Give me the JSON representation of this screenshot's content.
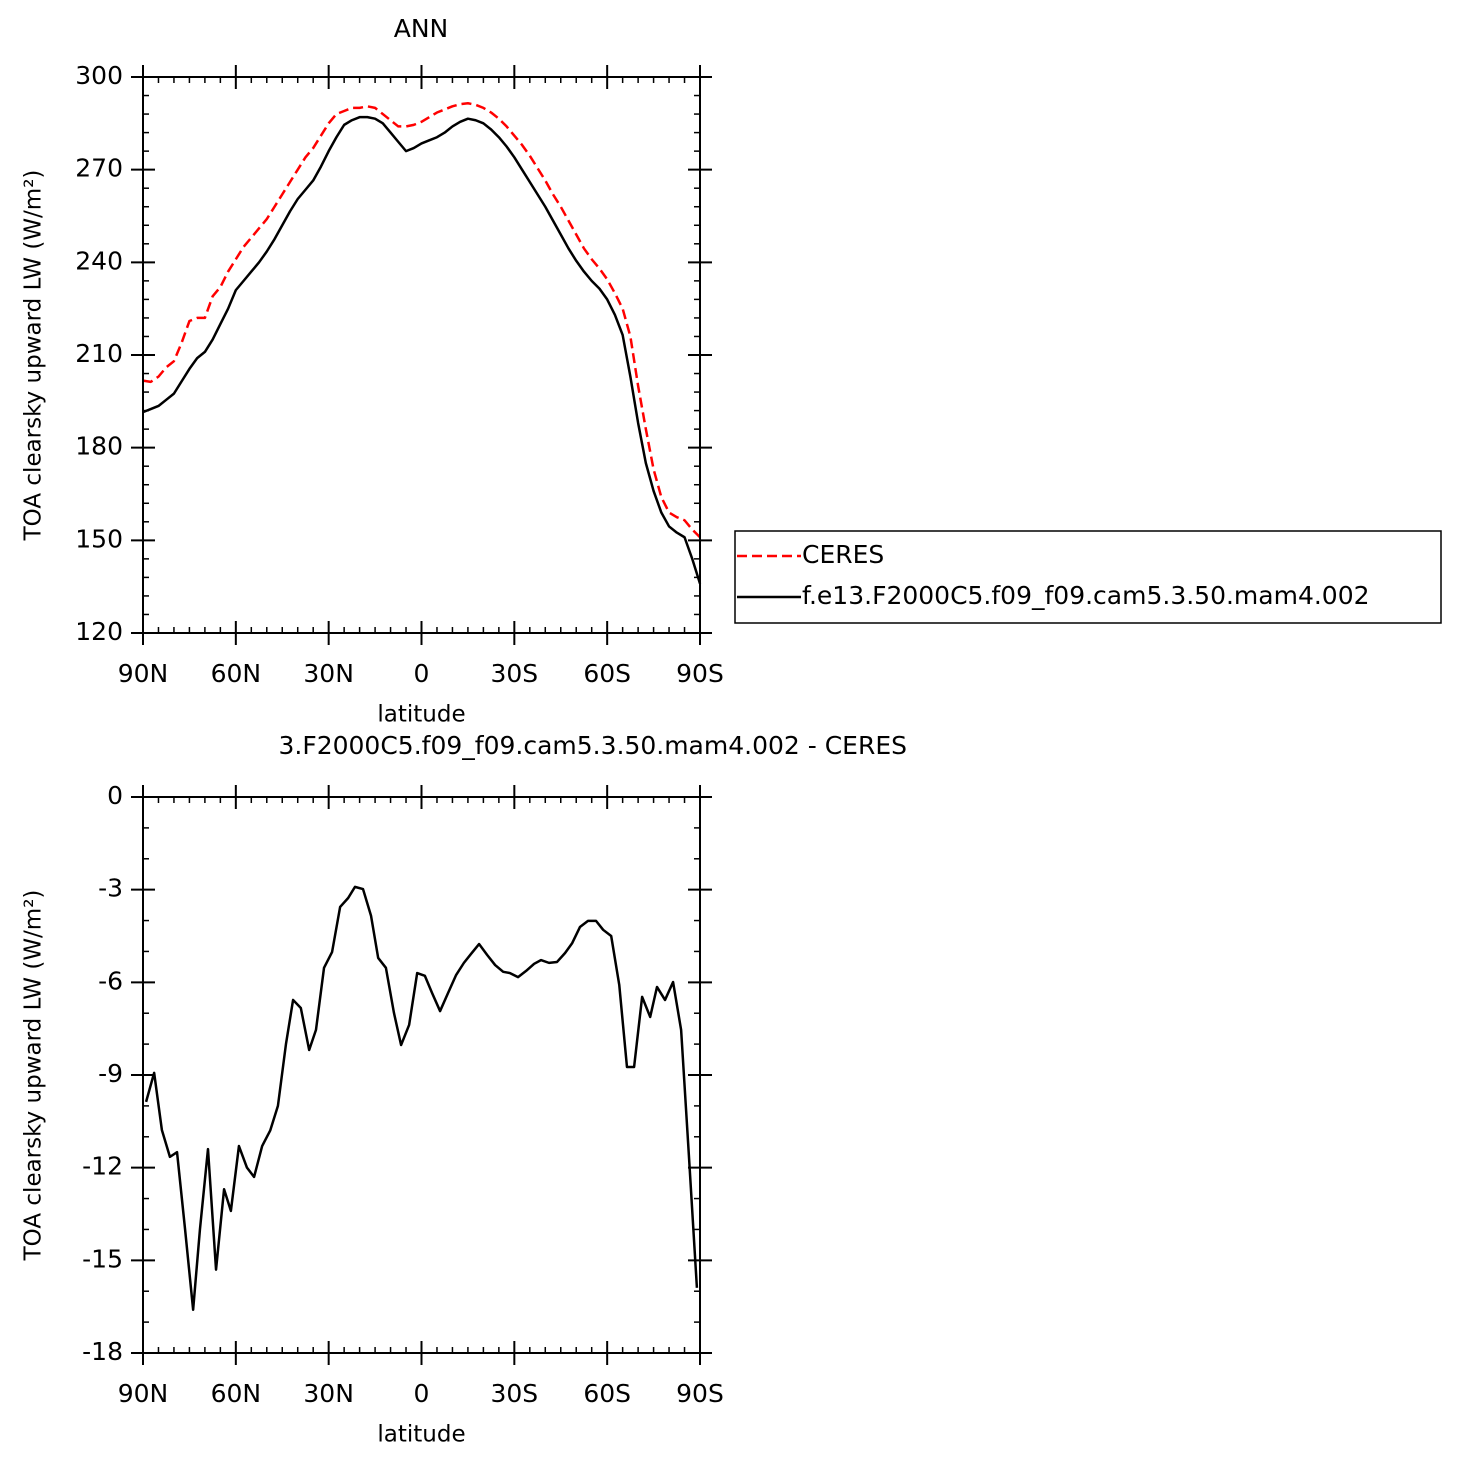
{
  "chart_data": [
    {
      "type": "line",
      "title": "ANN",
      "x_label": "latitude",
      "y_label": "TOA clearsky upward LW (W/m²)",
      "x": [
        90,
        87.5,
        85,
        82.5,
        80,
        77.5,
        75,
        72.5,
        70,
        67.5,
        65,
        62.5,
        60,
        57.5,
        55,
        52.5,
        50,
        47.5,
        45,
        42.5,
        40,
        37.5,
        35,
        32.5,
        30,
        27.5,
        25,
        22.5,
        20,
        17.5,
        15,
        12.5,
        10,
        7.5,
        5,
        2.5,
        0,
        -2.5,
        -5,
        -7.5,
        -10,
        -12.5,
        -15,
        -17.5,
        -20,
        -22.5,
        -25,
        -27.5,
        -30,
        -32.5,
        -35,
        -37.5,
        -40,
        -42.5,
        -45,
        -47.5,
        -50,
        -52.5,
        -55,
        -57.5,
        -60,
        -62.5,
        -65,
        -67.5,
        -70,
        -72.5,
        -75,
        -77.5,
        -80,
        -82.5,
        -85,
        -87.5,
        -90
      ],
      "series": [
        {
          "name": "CERES",
          "color": "#ff0000",
          "line_style": "dashed",
          "values": [
            201.7,
            201.3,
            203,
            206,
            208,
            214,
            221,
            222,
            222,
            229,
            232,
            237,
            241,
            245,
            248,
            251,
            254,
            258,
            262,
            266,
            270,
            274,
            277,
            281,
            285,
            288,
            289,
            290,
            290,
            290.5,
            290,
            288,
            286,
            284,
            284,
            284.5,
            285.5,
            287,
            288.5,
            289.5,
            290.5,
            291.2,
            291.5,
            291,
            290,
            288.5,
            286.5,
            284,
            281,
            278,
            274.5,
            270.5,
            266.5,
            262,
            258,
            253.5,
            249,
            244.5,
            241,
            238,
            234.5,
            230,
            225,
            216,
            200,
            186,
            173,
            164,
            159,
            157.5,
            156.5,
            153.5,
            151
          ]
        },
        {
          "name": "f.e13.F2000C5.f09_f09.cam5.3.50.mam4.002",
          "color": "#000000",
          "line_style": "solid",
          "values": [
            191.5,
            192.5,
            193.5,
            195.5,
            197.5,
            201.5,
            205.5,
            209,
            211,
            215,
            220,
            225,
            231,
            234,
            237,
            240,
            243.5,
            247.5,
            252,
            256.5,
            260.5,
            263.5,
            266.5,
            271,
            276,
            280.5,
            284.5,
            286,
            287,
            287,
            286.5,
            285,
            282,
            279,
            276,
            277,
            278.5,
            279.5,
            280.5,
            282,
            284,
            285.5,
            286.5,
            286,
            285,
            283,
            280.5,
            277.5,
            274,
            270,
            266,
            262,
            258,
            253.5,
            249,
            244.5,
            240.5,
            237,
            234,
            231.5,
            228,
            223,
            216.5,
            203,
            188,
            175,
            166,
            159,
            154.5,
            152.5,
            151,
            144,
            136
          ]
        }
      ],
      "xlim": [
        90,
        -90
      ],
      "xticks": [
        {
          "value": 90,
          "label": "90N"
        },
        {
          "value": 60,
          "label": "60N"
        },
        {
          "value": 30,
          "label": "30N"
        },
        0,
        {
          "value": -30,
          "label": "30S"
        },
        {
          "value": -60,
          "label": "60S"
        },
        {
          "value": -90,
          "label": "90S"
        }
      ],
      "ylim": [
        120,
        300
      ],
      "yticks": [
        120,
        150,
        180,
        210,
        240,
        270,
        300
      ],
      "legend": "right"
    },
    {
      "type": "line",
      "title": "3.F2000C5.f09_f09.cam5.3.50.mam4.002 - CERES",
      "x_label": "latitude",
      "y_label": "TOA clearsky upward LW (W/m²)",
      "x": [
        89,
        86.4,
        83.9,
        81.3,
        79,
        76.4,
        73.8,
        71.6,
        69,
        66.4,
        63.8,
        61.6,
        59,
        56.4,
        54.1,
        51.5,
        48.9,
        46.4,
        43.8,
        41.5,
        39,
        36.3,
        34.1,
        31.5,
        28.9,
        26.3,
        23.7,
        21.5,
        18.9,
        16.3,
        14,
        11.5,
        8.9,
        6.6,
        4,
        1.4,
        -1.1,
        -3.4,
        -6,
        -8.6,
        -11.2,
        -13.7,
        -16,
        -18.6,
        -21.2,
        -23.8,
        -26.4,
        -28.6,
        -31.2,
        -33.8,
        -36.4,
        -38.6,
        -41.2,
        -43.8,
        -46.4,
        -48.7,
        -51.2,
        -53.8,
        -56.4,
        -58.7,
        -61.3,
        -63.9,
        -66.4,
        -68.7,
        -71.3,
        -73.9,
        -76.1,
        -78.7,
        -81.3,
        -83.9,
        -86.4,
        -89
      ],
      "series": [
        {
          "color": "#000000",
          "line_style": "solid",
          "values": [
            -9.87,
            -8.93,
            -10.78,
            -11.65,
            -11.5,
            -14.0,
            -16.6,
            -14.0,
            -11.4,
            -15.3,
            -12.7,
            -13.4,
            -11.3,
            -12.0,
            -12.3,
            -11.3,
            -10.8,
            -10.0,
            -8.0,
            -6.57,
            -6.83,
            -8.19,
            -7.54,
            -5.53,
            -5.02,
            -3.56,
            -3.27,
            -2.91,
            -2.98,
            -3.85,
            -5.21,
            -5.53,
            -6.99,
            -8.03,
            -7.38,
            -5.7,
            -5.79,
            -6.34,
            -6.93,
            -6.34,
            -5.76,
            -5.37,
            -5.08,
            -4.76,
            -5.11,
            -5.44,
            -5.66,
            -5.7,
            -5.83,
            -5.63,
            -5.4,
            -5.28,
            -5.37,
            -5.34,
            -5.05,
            -4.73,
            -4.21,
            -4.01,
            -4.01,
            -4.3,
            -4.5,
            -6.08,
            -8.74,
            -8.74,
            -6.47,
            -7.12,
            -6.15,
            -6.57,
            -5.99,
            -7.54,
            -11.59,
            -15.89
          ]
        }
      ],
      "xlim": [
        90,
        -90
      ],
      "xticks": [
        {
          "value": 90,
          "label": "90N"
        },
        {
          "value": 60,
          "label": "60N"
        },
        {
          "value": 30,
          "label": "30N"
        },
        0,
        {
          "value": -30,
          "label": "30S"
        },
        {
          "value": -60,
          "label": "60S"
        },
        {
          "value": -90,
          "label": "90S"
        }
      ],
      "ylim": [
        -18,
        0
      ],
      "yticks": [
        -18,
        -15,
        -12,
        -9,
        -6,
        -3,
        0
      ]
    }
  ]
}
